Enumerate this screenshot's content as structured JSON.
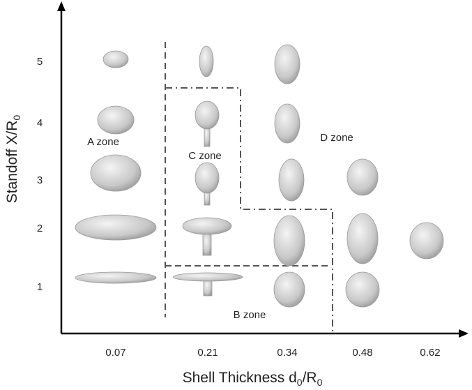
{
  "axes": {
    "x": {
      "label": {
        "text": "Shell Thickness d",
        "sub1": "0",
        "mid": "/R",
        "sub2": "0"
      },
      "ticks": [
        "0.07",
        "0.21",
        "0.34",
        "0.48",
        "0.62"
      ]
    },
    "y": {
      "label": {
        "text": "Standoff X/R",
        "sub": "0"
      },
      "ticks": [
        "1",
        "2",
        "3",
        "4",
        "5"
      ]
    }
  },
  "zones": [
    "A zone",
    "B zone",
    "C zone",
    "D zone"
  ]
}
